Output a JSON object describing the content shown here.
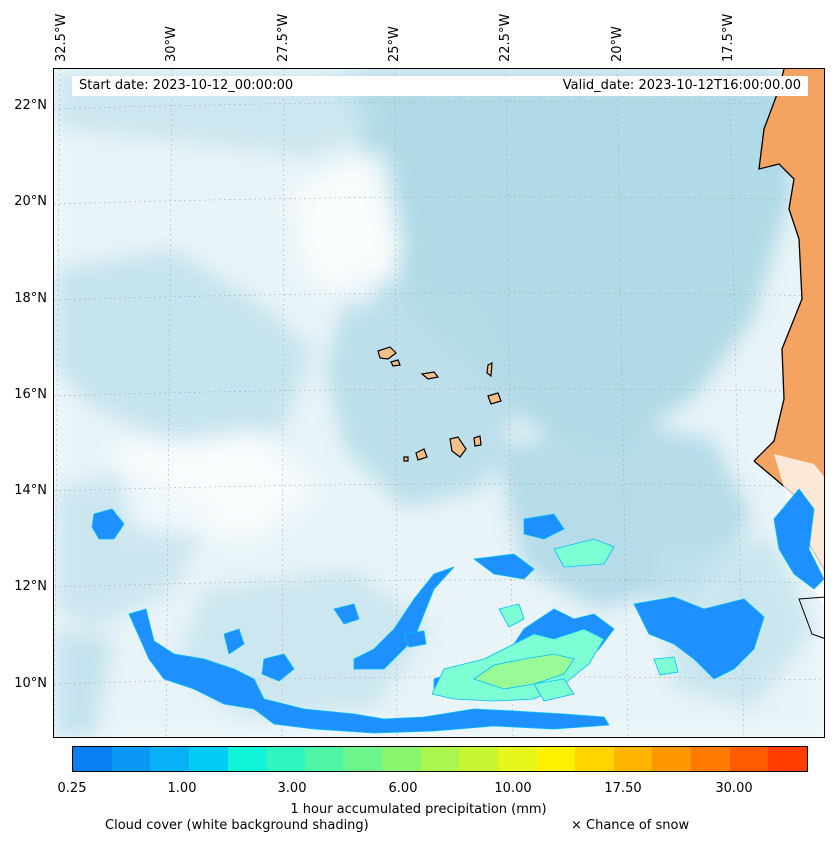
{
  "header": {
    "start_date": "Start date: 2023-10-12_00:00:00",
    "valid_date": "Valid_date: 2023-10-12T16:00:00.00"
  },
  "axes": {
    "lon_labels": [
      "32.5°W",
      "30°W",
      "27.5°W",
      "25°W",
      "22.5°W",
      "20°W",
      "17.5°W"
    ],
    "lat_labels": [
      "22°N",
      "20°N",
      "18°N",
      "16°N",
      "14°N",
      "12°N",
      "10°N"
    ]
  },
  "colorbar": {
    "title": "1 hour accumulated precipitation (mm)",
    "ticks": [
      "0.25",
      "1.00",
      "3.00",
      "6.00",
      "10.00",
      "17.50",
      "30.00"
    ],
    "colors": [
      "#0a7ff5",
      "#0a98f5",
      "#08b0f5",
      "#04cdf5",
      "#10f5d8",
      "#30f5c0",
      "#4ef5a4",
      "#6cf58a",
      "#8cf570",
      "#aaf54e",
      "#c8f532",
      "#e6f51a",
      "#fff000",
      "#ffd400",
      "#ffb600",
      "#ff9800",
      "#ff7a00",
      "#ff5c00",
      "#ff3e00"
    ]
  },
  "legend": {
    "cloud_cover": "Cloud cover (white background shading)",
    "snow": "× Chance of snow"
  },
  "colors": {
    "ocean_cloud": "#add8e6",
    "land": "#f4a460",
    "precip_low": "#1e90ff",
    "precip_mid": "#7fffd4",
    "precip_high": "#98fb98"
  }
}
